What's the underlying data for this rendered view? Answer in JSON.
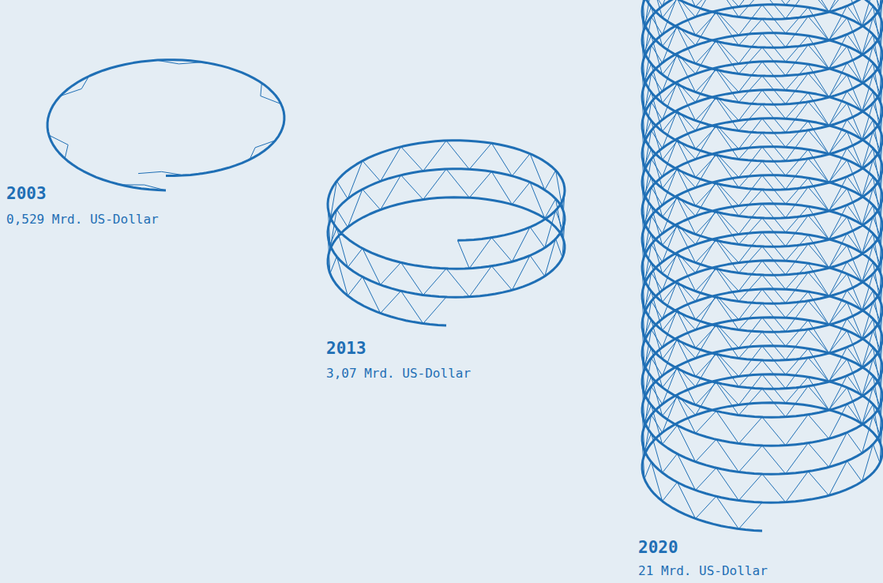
{
  "chart_data": {
    "type": "pictogram",
    "categories": [
      "2003",
      "2013",
      "2020"
    ],
    "values": [
      0.529,
      3.07,
      21
    ],
    "value_labels": [
      "0,529 Mrd. US-Dollar",
      "3,07 Mrd. US-Dollar",
      "21 Mrd. US-Dollar"
    ],
    "color": "#1f6fb5",
    "data_labels": true
  }
}
